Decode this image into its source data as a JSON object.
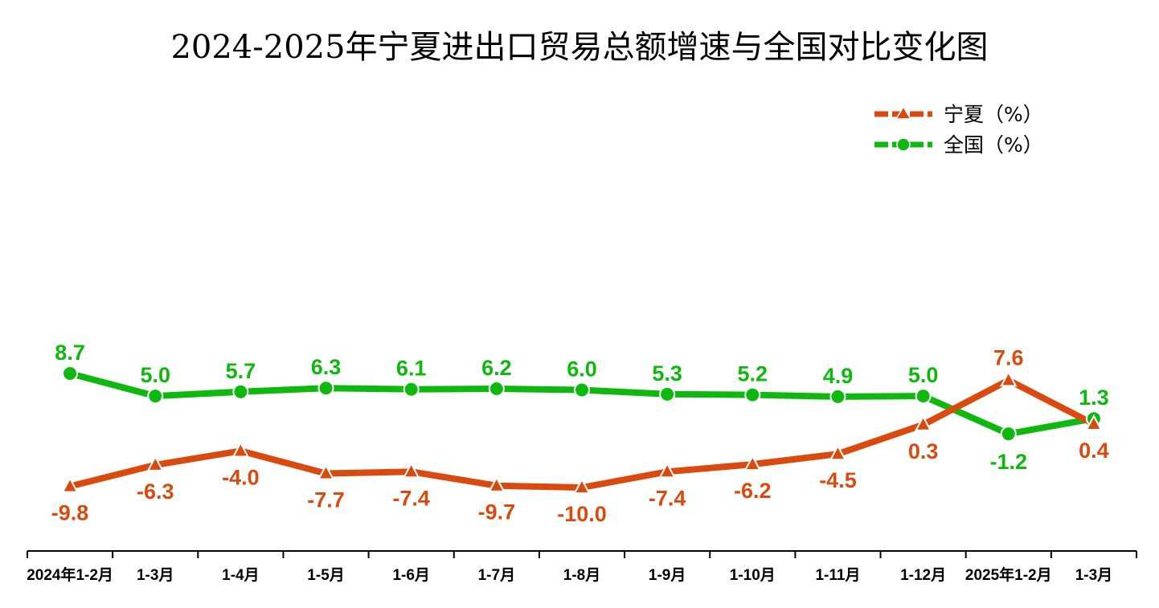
{
  "chart_data": {
    "type": "line",
    "title": "2024-2025年宁夏进出口贸易总额增速与全国对比变化图",
    "categories": [
      "2024年1-2月",
      "1-3月",
      "1-4月",
      "1-5月",
      "1-6月",
      "1-7月",
      "1-8月",
      "1-9月",
      "1-10月",
      "1-11月",
      "1-12月",
      "2025年1-2月",
      "1-3月"
    ],
    "series": [
      {
        "name": "宁夏（%）",
        "color": "#DA4A0F",
        "marker": "triangle",
        "values": [
          -9.8,
          -6.3,
          -4.0,
          -7.7,
          -7.4,
          -9.7,
          -10.0,
          -7.4,
          -6.2,
          -4.5,
          0.3,
          7.6,
          0.4
        ],
        "labels": [
          "-9.8",
          "-6.3",
          "-4.0",
          "-7.7",
          "-7.4",
          "-9.7",
          "-10.0",
          "-7.4",
          "-6.2",
          "-4.5",
          "0.3",
          "7.6",
          "0.4"
        ]
      },
      {
        "name": "全国（%）",
        "color": "#0FB80F",
        "marker": "circle",
        "values": [
          8.7,
          5.0,
          5.7,
          6.3,
          6.1,
          6.2,
          6.0,
          5.3,
          5.2,
          4.9,
          5.0,
          -1.2,
          1.3
        ],
        "labels": [
          "8.7",
          "5.0",
          "5.7",
          "6.3",
          "6.1",
          "6.2",
          "6.0",
          "5.3",
          "5.2",
          "4.9",
          "5.0",
          "-1.2",
          "1.3"
        ]
      }
    ],
    "legend": "top-right",
    "grid": false,
    "y_axis_visible": false
  }
}
